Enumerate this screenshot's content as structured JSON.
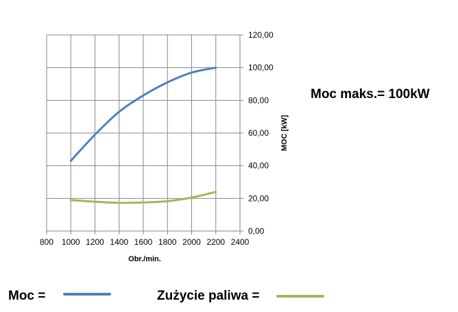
{
  "chart_data": {
    "type": "line",
    "xlabel": "Obr./min.",
    "ylabel": "MOC [kW]",
    "xlim": [
      800,
      2400
    ],
    "ylim": [
      0,
      120
    ],
    "x_ticks": [
      "800",
      "1000",
      "1200",
      "1400",
      "1600",
      "1800",
      "2000",
      "2200",
      "2400"
    ],
    "y_ticks": [
      "0,00",
      "20,00",
      "40,00",
      "60,00",
      "80,00",
      "100,00",
      "120,00"
    ],
    "y_axis_position": "right",
    "grid": true,
    "series": [
      {
        "name": "Moc",
        "color": "#4F81BD",
        "points": [
          [
            1000,
            43
          ],
          [
            1200,
            59
          ],
          [
            1400,
            73
          ],
          [
            1600,
            83
          ],
          [
            1800,
            91
          ],
          [
            2000,
            97
          ],
          [
            2200,
            100
          ]
        ]
      },
      {
        "name": "Zużycie paliwa",
        "color": "#9BBB59",
        "points": [
          [
            1000,
            19
          ],
          [
            1200,
            18
          ],
          [
            1400,
            17.3
          ],
          [
            1600,
            17.5
          ],
          [
            1800,
            18.3
          ],
          [
            2000,
            20.5
          ],
          [
            2200,
            24
          ]
        ]
      }
    ],
    "annotation": "Moc maks.= 100kW"
  },
  "legend": {
    "moc_label": "Moc =",
    "fuel_label": "Zużycie paliwa ="
  }
}
